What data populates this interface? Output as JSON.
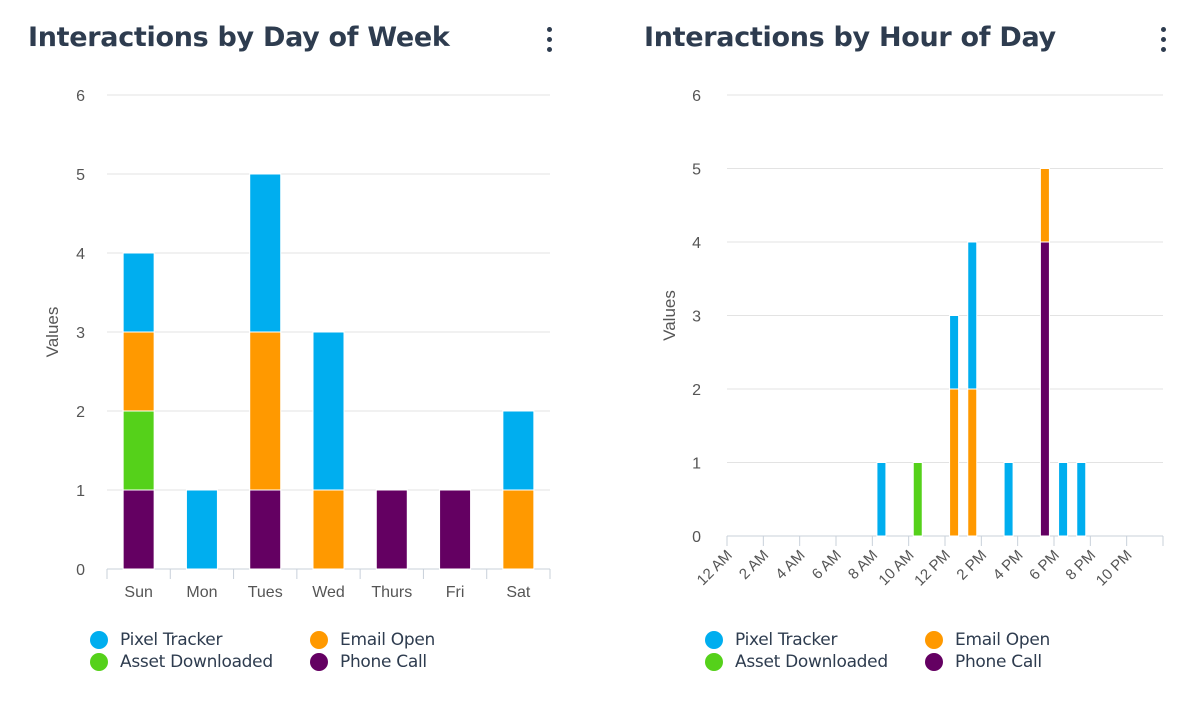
{
  "colors": {
    "pixel_tracker": "#00aeef",
    "email_open": "#ff9900",
    "asset_downloaded": "#55d11a",
    "phone_call": "#640062"
  },
  "panels": {
    "day": {
      "title": "Interactions by Day of Week",
      "menu_icon": "kebab-menu-icon"
    },
    "hour": {
      "title": "Interactions by Hour of Day",
      "menu_icon": "kebab-menu-icon"
    }
  },
  "legend": [
    {
      "name": "Pixel Tracker",
      "color": "#00aeef"
    },
    {
      "name": "Email Open",
      "color": "#ff9900"
    },
    {
      "name": "Asset Downloaded",
      "color": "#55d11a"
    },
    {
      "name": "Phone Call",
      "color": "#640062"
    }
  ],
  "chart_data": [
    {
      "type": "bar",
      "stacked": true,
      "title": "Interactions by Day of Week",
      "ylabel": "Values",
      "xlabel": "",
      "ylim": [
        0,
        6
      ],
      "yticks": [
        0,
        1,
        2,
        3,
        4,
        5,
        6
      ],
      "grid": true,
      "legend_position": "bottom",
      "categories": [
        "Sun",
        "Mon",
        "Tues",
        "Wed",
        "Thurs",
        "Fri",
        "Sat"
      ],
      "series": [
        {
          "name": "Phone Call",
          "color": "#640062",
          "values": [
            1,
            0,
            1,
            0,
            1,
            1,
            0
          ]
        },
        {
          "name": "Asset Downloaded",
          "color": "#55d11a",
          "values": [
            1,
            0,
            0,
            0,
            0,
            0,
            0
          ]
        },
        {
          "name": "Email Open",
          "color": "#ff9900",
          "values": [
            1,
            0,
            2,
            1,
            0,
            0,
            1
          ]
        },
        {
          "name": "Pixel Tracker",
          "color": "#00aeef",
          "values": [
            1,
            1,
            2,
            2,
            0,
            0,
            1
          ]
        }
      ]
    },
    {
      "type": "bar",
      "stacked": true,
      "title": "Interactions by Hour of Day",
      "ylabel": "Values",
      "xlabel": "",
      "ylim": [
        0,
        6
      ],
      "yticks": [
        0,
        1,
        2,
        3,
        4,
        5,
        6
      ],
      "grid": true,
      "legend_position": "bottom",
      "categories": [
        "12 AM",
        "1 AM",
        "2 AM",
        "3 AM",
        "4 AM",
        "5 AM",
        "6 AM",
        "7 AM",
        "8 AM",
        "9 AM",
        "10 AM",
        "11 AM",
        "12 PM",
        "1 PM",
        "2 PM",
        "3 PM",
        "4 PM",
        "5 PM",
        "6 PM",
        "7 PM",
        "8 PM",
        "9 PM",
        "10 PM",
        "11 PM"
      ],
      "tick_labels": [
        "12 AM",
        "2 AM",
        "4 AM",
        "6 AM",
        "8 AM",
        "10 AM",
        "12 PM",
        "2 PM",
        "4 PM",
        "6 PM",
        "8 PM",
        "10 PM"
      ],
      "series": [
        {
          "name": "Phone Call",
          "color": "#640062",
          "values": [
            0,
            0,
            0,
            0,
            0,
            0,
            0,
            0,
            0,
            0,
            0,
            0,
            0,
            0,
            0,
            0,
            0,
            4,
            0,
            0,
            0,
            0,
            0,
            0
          ]
        },
        {
          "name": "Asset Downloaded",
          "color": "#55d11a",
          "values": [
            0,
            0,
            0,
            0,
            0,
            0,
            0,
            0,
            0,
            0,
            1,
            0,
            0,
            0,
            0,
            0,
            0,
            0,
            0,
            0,
            0,
            0,
            0,
            0
          ]
        },
        {
          "name": "Email Open",
          "color": "#ff9900",
          "values": [
            0,
            0,
            0,
            0,
            0,
            0,
            0,
            0,
            0,
            0,
            0,
            0,
            2,
            2,
            0,
            0,
            0,
            1,
            0,
            0,
            0,
            0,
            0,
            0
          ]
        },
        {
          "name": "Pixel Tracker",
          "color": "#00aeef",
          "values": [
            0,
            0,
            0,
            0,
            0,
            0,
            0,
            0,
            1,
            0,
            0,
            0,
            1,
            2,
            0,
            1,
            0,
            0,
            1,
            1,
            0,
            0,
            0,
            0
          ]
        }
      ]
    }
  ]
}
